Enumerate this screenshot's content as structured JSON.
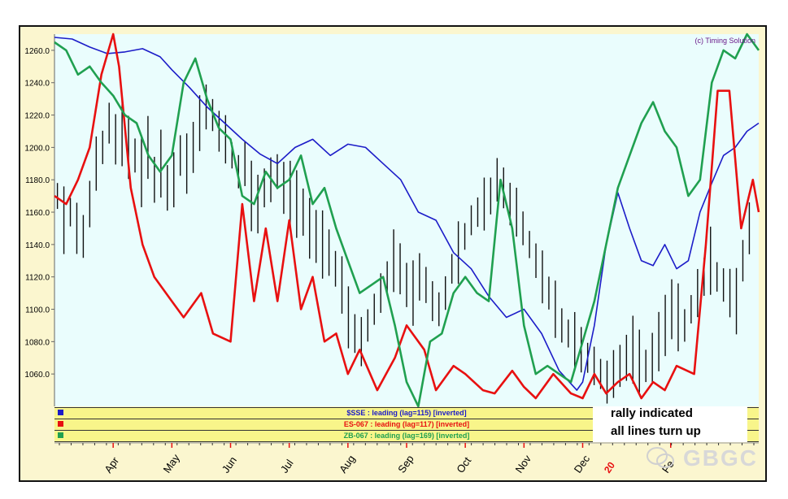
{
  "chart_data": {
    "type": "line",
    "copyright": "(c) Timing Solution",
    "y_ticks": [
      "1260.0",
      "1240.0",
      "1220.0",
      "1200.0",
      "1180.0",
      "1160.0",
      "1140.0",
      "1120.0",
      "1100.0",
      "1080.0",
      "1060.0"
    ],
    "y_tick_values": [
      1260,
      1240,
      1220,
      1200,
      1180,
      1160,
      1140,
      1120,
      1100,
      1080,
      1060
    ],
    "ylim": [
      1040,
      1270
    ],
    "xlim": [
      0,
      12
    ],
    "x_ticks": [
      {
        "label": "Apr",
        "x": 1.0
      },
      {
        "label": "May",
        "x": 2.0
      },
      {
        "label": "Jun",
        "x": 3.0
      },
      {
        "label": "Jul",
        "x": 4.0
      },
      {
        "label": "Aug",
        "x": 5.0
      },
      {
        "label": "Sep",
        "x": 6.0
      },
      {
        "label": "Oct",
        "x": 7.0
      },
      {
        "label": "Nov",
        "x": 8.0
      },
      {
        "label": "Dec",
        "x": 9.0
      },
      {
        "label": "Fe",
        "x": 10.5
      }
    ],
    "series": [
      {
        "name": "$SSE : leading (lag=115) [inverted]",
        "color": "#1c1cc8",
        "x": [
          0,
          0.3,
          0.6,
          0.9,
          1.2,
          1.5,
          1.8,
          2.0,
          2.3,
          2.6,
          2.9,
          3.2,
          3.5,
          3.8,
          4.1,
          4.4,
          4.7,
          5.0,
          5.3,
          5.6,
          5.9,
          6.2,
          6.5,
          6.8,
          7.1,
          7.4,
          7.7,
          8.0,
          8.3,
          8.6,
          8.9,
          9.0,
          9.2,
          9.4,
          9.6,
          9.8,
          10.0,
          10.2,
          10.4,
          10.6,
          10.8,
          11.0,
          11.2,
          11.4,
          11.6,
          11.8,
          12.0
        ],
        "values": [
          1268,
          1267,
          1262,
          1258,
          1259,
          1261,
          1256,
          1248,
          1237,
          1225,
          1215,
          1205,
          1196,
          1190,
          1200,
          1205,
          1195,
          1202,
          1200,
          1190,
          1180,
          1160,
          1155,
          1135,
          1125,
          1108,
          1095,
          1100,
          1085,
          1062,
          1050,
          1055,
          1090,
          1140,
          1172,
          1150,
          1130,
          1127,
          1140,
          1125,
          1130,
          1160,
          1178,
          1195,
          1200,
          1210,
          1215
        ]
      },
      {
        "name": "ES-067 : leading (lag=117) [inverted]",
        "color": "#e81010",
        "x": [
          0,
          0.2,
          0.4,
          0.6,
          0.8,
          1.0,
          1.1,
          1.3,
          1.5,
          1.7,
          2.0,
          2.2,
          2.5,
          2.7,
          3.0,
          3.2,
          3.4,
          3.6,
          3.8,
          4.0,
          4.2,
          4.4,
          4.6,
          4.8,
          5.0,
          5.2,
          5.5,
          5.8,
          6.0,
          6.3,
          6.5,
          6.8,
          7.0,
          7.3,
          7.5,
          7.8,
          8.0,
          8.2,
          8.5,
          8.8,
          9.0,
          9.2,
          9.4,
          9.6,
          9.8,
          10.0,
          10.2,
          10.4,
          10.6,
          10.9,
          11.1,
          11.3,
          11.5,
          11.7,
          11.9,
          12.0
        ],
        "values": [
          1170,
          1165,
          1180,
          1200,
          1245,
          1270,
          1250,
          1175,
          1140,
          1120,
          1105,
          1095,
          1110,
          1085,
          1080,
          1165,
          1105,
          1150,
          1105,
          1155,
          1100,
          1120,
          1080,
          1085,
          1060,
          1075,
          1050,
          1070,
          1090,
          1075,
          1050,
          1065,
          1060,
          1050,
          1048,
          1062,
          1052,
          1045,
          1060,
          1048,
          1045,
          1060,
          1048,
          1055,
          1060,
          1045,
          1055,
          1050,
          1065,
          1060,
          1140,
          1235,
          1235,
          1150,
          1180,
          1160
        ]
      },
      {
        "name": "ZB-067 : leading (lag=169) [inverted]",
        "color": "#20a050",
        "x": [
          0,
          0.2,
          0.4,
          0.6,
          0.8,
          1.0,
          1.2,
          1.4,
          1.6,
          1.8,
          2.0,
          2.2,
          2.4,
          2.6,
          2.8,
          3.0,
          3.2,
          3.4,
          3.6,
          3.8,
          4.0,
          4.2,
          4.4,
          4.6,
          4.8,
          5.0,
          5.2,
          5.4,
          5.6,
          5.8,
          6.0,
          6.2,
          6.4,
          6.6,
          6.8,
          7.0,
          7.2,
          7.4,
          7.6,
          7.8,
          8.0,
          8.2,
          8.4,
          8.6,
          8.8,
          9.0,
          9.2,
          9.4,
          9.6,
          9.8,
          10.0,
          10.2,
          10.4,
          10.6,
          10.8,
          11.0,
          11.2,
          11.4,
          11.6,
          11.8,
          12.0
        ],
        "values": [
          1265,
          1260,
          1245,
          1250,
          1240,
          1232,
          1220,
          1215,
          1195,
          1185,
          1195,
          1240,
          1255,
          1230,
          1212,
          1205,
          1170,
          1165,
          1185,
          1175,
          1180,
          1195,
          1165,
          1175,
          1150,
          1130,
          1110,
          1115,
          1120,
          1090,
          1055,
          1035,
          1080,
          1085,
          1110,
          1120,
          1110,
          1105,
          1180,
          1150,
          1090,
          1060,
          1065,
          1060,
          1055,
          1080,
          1105,
          1140,
          1175,
          1195,
          1215,
          1228,
          1210,
          1200,
          1170,
          1180,
          1240,
          1260,
          1255,
          1275,
          1260
        ]
      }
    ],
    "price_bars": [
      1170,
      1155,
      1160,
      1150,
      1145,
      1165,
      1190,
      1200,
      1215,
      1205,
      1210,
      1200,
      1195,
      1185,
      1200,
      1180,
      1190,
      1175,
      1180,
      1195,
      1190,
      1200,
      1215,
      1225,
      1220,
      1210,
      1205,
      1195,
      1185,
      1190,
      1170,
      1165,
      1175,
      1180,
      1185,
      1175,
      1170,
      1165,
      1160,
      1150,
      1145,
      1140,
      1135,
      1125,
      1115,
      1095,
      1085,
      1080,
      1090,
      1100,
      1110,
      1120,
      1130,
      1125,
      1115,
      1110,
      1120,
      1115,
      1105,
      1100,
      1110,
      1125,
      1135,
      1145,
      1155,
      1160,
      1165,
      1170,
      1180,
      1175,
      1165,
      1160,
      1150,
      1140,
      1130,
      1120,
      1110,
      1100,
      1090,
      1085,
      1080,
      1075,
      1070,
      1065,
      1060,
      1055,
      1060,
      1065,
      1070,
      1075,
      1068,
      1065,
      1070,
      1080,
      1090,
      1100,
      1095,
      1090,
      1100,
      1110,
      1120,
      1130,
      1120,
      1115,
      1110,
      1105,
      1130,
      1150
    ],
    "legend_position": "bottom",
    "grid": false
  },
  "annotation": {
    "line1": "rally indicated",
    "line2": "all lines turn up"
  },
  "watermark": "GBGC",
  "year_marker": "20"
}
